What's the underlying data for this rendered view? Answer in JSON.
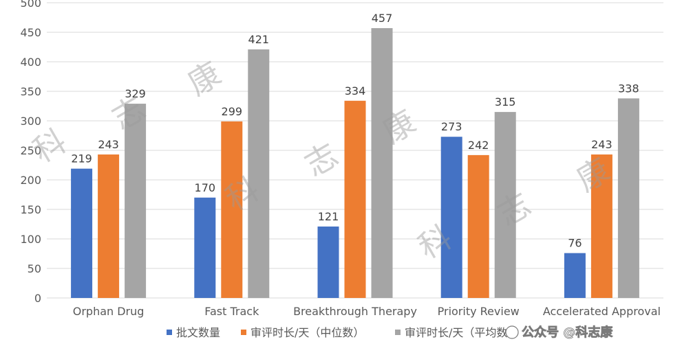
{
  "chart_data": {
    "type": "bar",
    "categories": [
      "Orphan Drug",
      "Fast Track",
      "Breakthrough Therapy",
      "Priority Review",
      "Accelerated Approval"
    ],
    "series": [
      {
        "name": "批文数量",
        "color": "#4472C4",
        "values": [
          219,
          170,
          121,
          273,
          76
        ]
      },
      {
        "name": "审评时长/天（中位数）",
        "color": "#ED7D31",
        "values": [
          243,
          299,
          334,
          242,
          243
        ]
      },
      {
        "name": "审评时长/天（平均数）",
        "color": "#A5A5A5",
        "values": [
          329,
          421,
          457,
          315,
          338
        ]
      }
    ],
    "ylim": [
      0,
      500
    ],
    "yticks": [
      0,
      50,
      100,
      150,
      200,
      250,
      300,
      350,
      400,
      450,
      500
    ],
    "grid": true,
    "legend_position": "bottom",
    "title": "",
    "xlabel": "",
    "ylabel": ""
  },
  "watermark": {
    "chars": [
      "科",
      "志",
      "康",
      "科",
      "志",
      "康",
      "科",
      "志",
      "康",
      "康"
    ],
    "brand_text": "公众号 @科志康"
  }
}
